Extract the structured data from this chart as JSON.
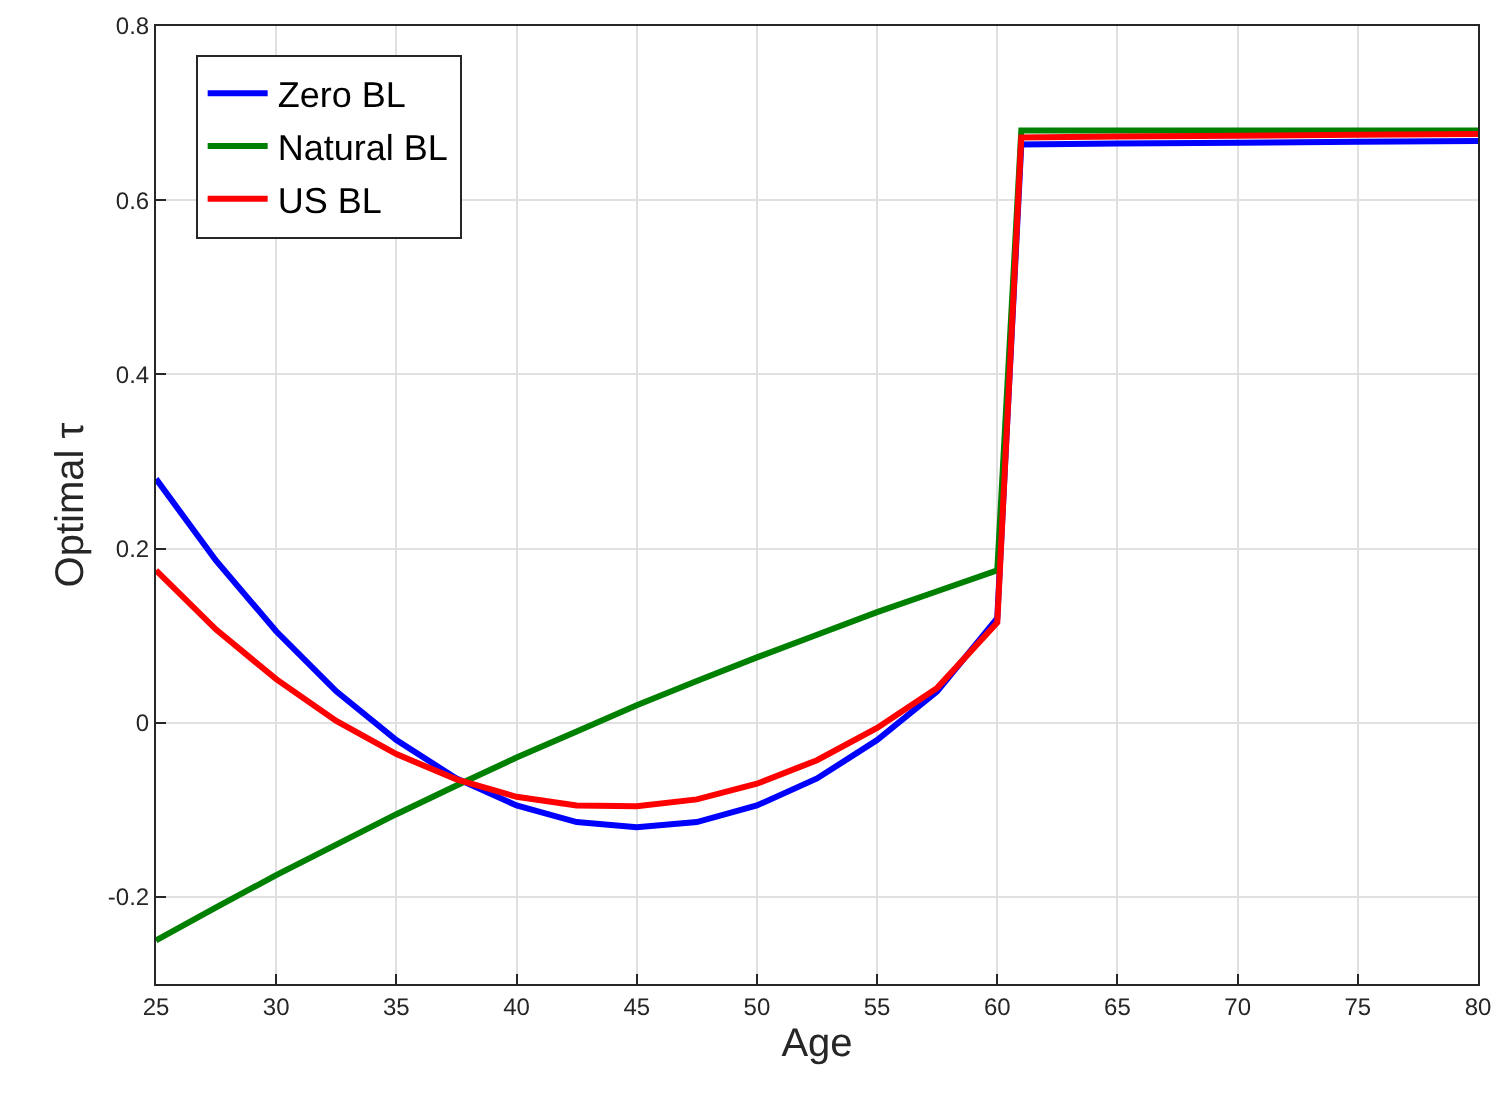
{
  "chart_data": {
    "type": "line",
    "xlabel": "Age",
    "ylabel": "Optimal τ",
    "x": [
      25,
      27.5,
      30,
      32.5,
      35,
      37.5,
      40,
      42.5,
      45,
      47.5,
      50,
      52.5,
      55,
      57.5,
      60,
      61,
      65,
      70,
      75,
      80
    ],
    "series": [
      {
        "name": "Zero BL",
        "color": "#0000ff",
        "values": [
          0.28,
          0.186,
          0.105,
          0.036,
          -0.02,
          -0.064,
          -0.095,
          -0.114,
          -0.12,
          -0.114,
          -0.095,
          -0.064,
          -0.02,
          0.036,
          0.12,
          0.664,
          0.665,
          0.666,
          0.667,
          0.668
        ]
      },
      {
        "name": "Natural BL",
        "color": "#008000",
        "values": [
          -0.25,
          -0.212,
          -0.175,
          -0.14,
          -0.105,
          -0.072,
          -0.04,
          -0.01,
          0.02,
          0.048,
          0.075,
          0.101,
          0.127,
          0.151,
          0.175,
          0.68,
          0.68,
          0.68,
          0.68,
          0.68
        ]
      },
      {
        "name": "US BL",
        "color": "#ff0000",
        "values": [
          0.175,
          0.107,
          0.05,
          0.002,
          -0.036,
          -0.065,
          -0.085,
          -0.095,
          -0.096,
          -0.088,
          -0.07,
          -0.043,
          -0.006,
          0.04,
          0.115,
          0.672,
          0.673,
          0.674,
          0.675,
          0.676
        ]
      }
    ],
    "xlim": [
      25,
      80
    ],
    "xticks": [
      25,
      30,
      35,
      40,
      45,
      50,
      55,
      60,
      65,
      70,
      75,
      80
    ],
    "ylim": [
      -0.3,
      0.8
    ],
    "yticks": [
      {
        "value": -0.2,
        "label": "-0.2"
      },
      0,
      0.2,
      0.4,
      0.6,
      0.8
    ],
    "grid": true,
    "legend": "top left",
    "line_style": "solid"
  }
}
